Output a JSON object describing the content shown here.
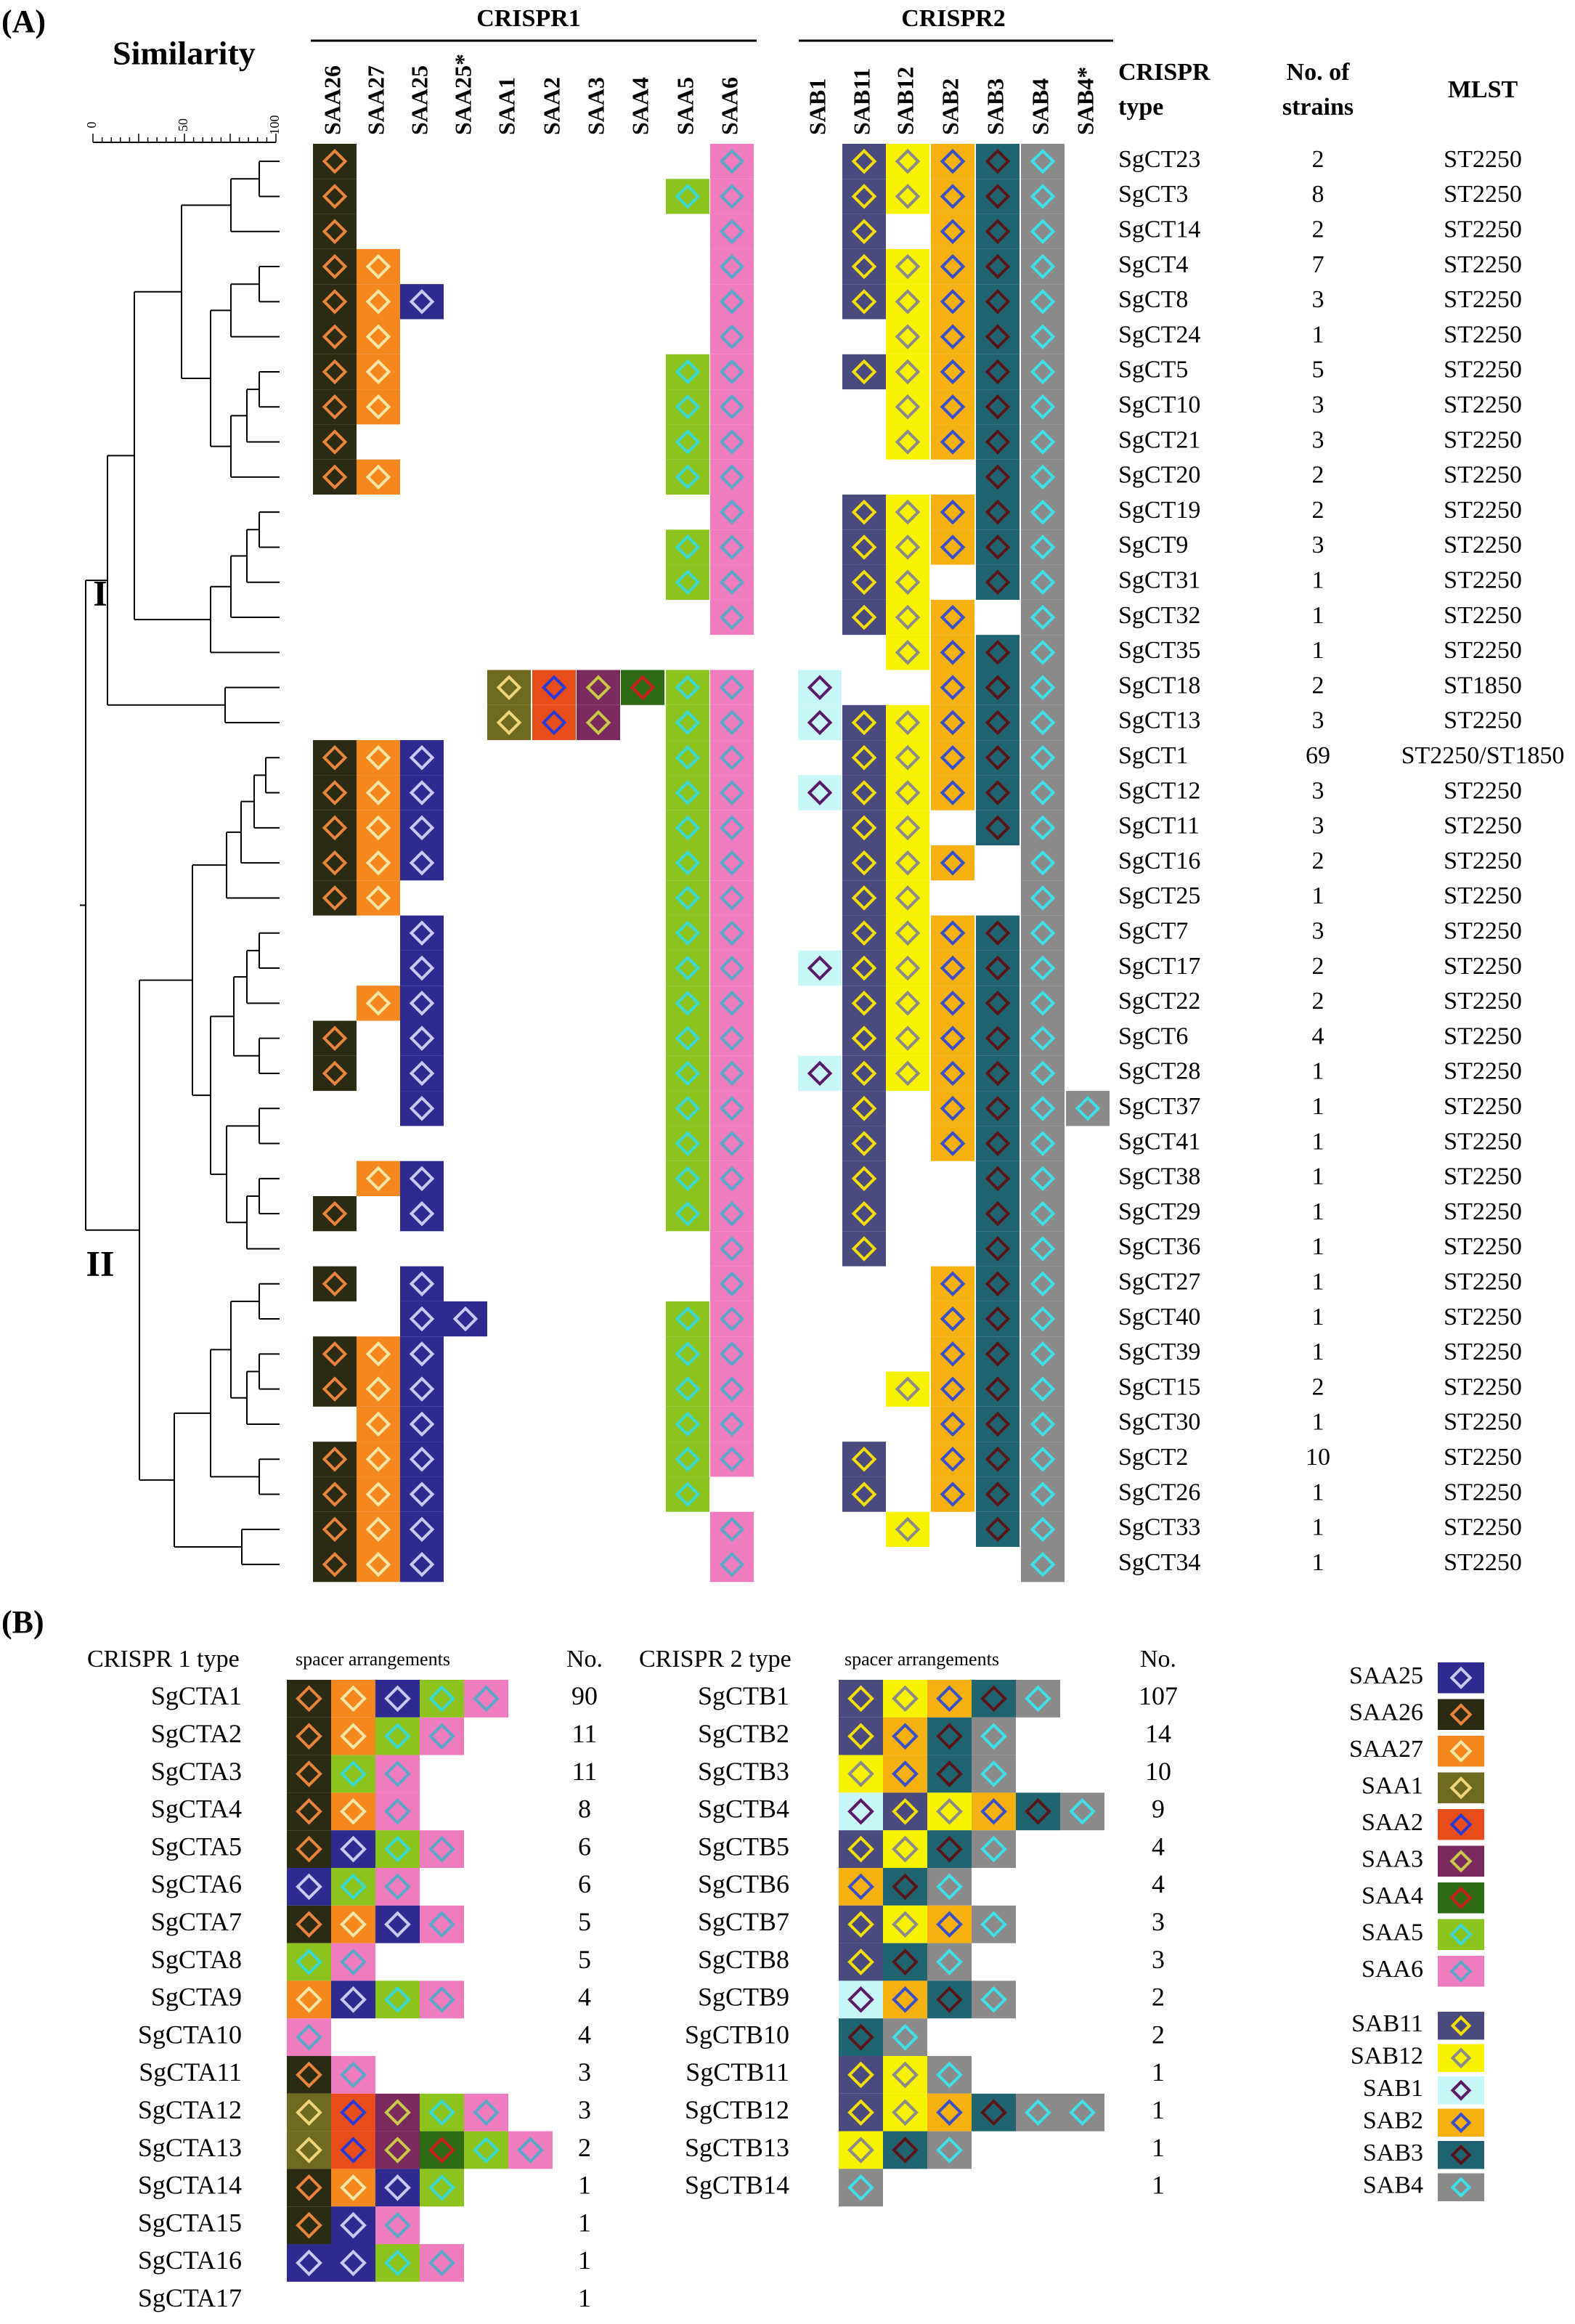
{
  "panel_a": {
    "label": "(A)",
    "similarity_title": "Similarity",
    "scale_ticks": [
      "0",
      "50",
      "100"
    ],
    "cluster_labels": [
      "I",
      "II"
    ],
    "group_titles": [
      "CRISPR1",
      "CRISPR2"
    ],
    "crispr1_columns": [
      "SAA26",
      "SAA27",
      "SAA25",
      "SAA25*",
      "SAA1",
      "SAA2",
      "SAA3",
      "SAA4",
      "SAA5",
      "SAA6"
    ],
    "crispr2_columns": [
      "SAB1",
      "SAB11",
      "SAB12",
      "SAB2",
      "SAB3",
      "SAB4",
      "SAB4*"
    ],
    "col_headers": {
      "type": "CRISPR type",
      "strains": "No. of strains",
      "mlst": "MLST"
    },
    "rows": [
      {
        "type": "SgCT23",
        "strains": "2",
        "mlst": "ST2250",
        "c1": [
          "SAA26",
          "SAA6"
        ],
        "c2": [
          "SAB11",
          "SAB12",
          "SAB2",
          "SAB3",
          "SAB4"
        ]
      },
      {
        "type": "SgCT3",
        "strains": "8",
        "mlst": "ST2250",
        "c1": [
          "SAA26",
          "SAA5",
          "SAA6"
        ],
        "c2": [
          "SAB11",
          "SAB12",
          "SAB2",
          "SAB3",
          "SAB4"
        ]
      },
      {
        "type": "SgCT14",
        "strains": "2",
        "mlst": "ST2250",
        "c1": [
          "SAA26",
          "SAA6"
        ],
        "c2": [
          "SAB11",
          "SAB2",
          "SAB3",
          "SAB4"
        ]
      },
      {
        "type": "SgCT4",
        "strains": "7",
        "mlst": "ST2250",
        "c1": [
          "SAA26",
          "SAA27",
          "SAA6"
        ],
        "c2": [
          "SAB11",
          "SAB12",
          "SAB2",
          "SAB3",
          "SAB4"
        ]
      },
      {
        "type": "SgCT8",
        "strains": "3",
        "mlst": "ST2250",
        "c1": [
          "SAA26",
          "SAA27",
          "SAA25",
          "SAA6"
        ],
        "c2": [
          "SAB11",
          "SAB12",
          "SAB2",
          "SAB3",
          "SAB4"
        ]
      },
      {
        "type": "SgCT24",
        "strains": "1",
        "mlst": "ST2250",
        "c1": [
          "SAA26",
          "SAA27",
          "SAA6"
        ],
        "c2": [
          "SAB12",
          "SAB2",
          "SAB3",
          "SAB4"
        ]
      },
      {
        "type": "SgCT5",
        "strains": "5",
        "mlst": "ST2250",
        "c1": [
          "SAA26",
          "SAA27",
          "SAA5",
          "SAA6"
        ],
        "c2": [
          "SAB11",
          "SAB12",
          "SAB2",
          "SAB3",
          "SAB4"
        ]
      },
      {
        "type": "SgCT10",
        "strains": "3",
        "mlst": "ST2250",
        "c1": [
          "SAA26",
          "SAA27",
          "SAA5",
          "SAA6"
        ],
        "c2": [
          "SAB12",
          "SAB2",
          "SAB3",
          "SAB4"
        ]
      },
      {
        "type": "SgCT21",
        "strains": "3",
        "mlst": "ST2250",
        "c1": [
          "SAA26",
          "SAA5",
          "SAA6"
        ],
        "c2": [
          "SAB12",
          "SAB2",
          "SAB3",
          "SAB4"
        ]
      },
      {
        "type": "SgCT20",
        "strains": "2",
        "mlst": "ST2250",
        "c1": [
          "SAA26",
          "SAA27",
          "SAA5",
          "SAA6"
        ],
        "c2": [
          "SAB3",
          "SAB4"
        ]
      },
      {
        "type": "SgCT19",
        "strains": "2",
        "mlst": "ST2250",
        "c1": [
          "SAA6"
        ],
        "c2": [
          "SAB11",
          "SAB12",
          "SAB2",
          "SAB3",
          "SAB4"
        ]
      },
      {
        "type": "SgCT9",
        "strains": "3",
        "mlst": "ST2250",
        "c1": [
          "SAA5",
          "SAA6"
        ],
        "c2": [
          "SAB11",
          "SAB12",
          "SAB2",
          "SAB3",
          "SAB4"
        ]
      },
      {
        "type": "SgCT31",
        "strains": "1",
        "mlst": "ST2250",
        "c1": [
          "SAA5",
          "SAA6"
        ],
        "c2": [
          "SAB11",
          "SAB12",
          "SAB3",
          "SAB4"
        ]
      },
      {
        "type": "SgCT32",
        "strains": "1",
        "mlst": "ST2250",
        "c1": [
          "SAA6"
        ],
        "c2": [
          "SAB11",
          "SAB12",
          "SAB2",
          "SAB4"
        ]
      },
      {
        "type": "SgCT35",
        "strains": "1",
        "mlst": "ST2250",
        "c1": [],
        "c2": [
          "SAB12",
          "SAB2",
          "SAB3",
          "SAB4"
        ]
      },
      {
        "type": "SgCT18",
        "strains": "2",
        "mlst": "ST1850",
        "c1": [
          "SAA1",
          "SAA2",
          "SAA3",
          "SAA4",
          "SAA5",
          "SAA6"
        ],
        "c2": [
          "SAB1",
          "SAB2",
          "SAB3",
          "SAB4"
        ]
      },
      {
        "type": "SgCT13",
        "strains": "3",
        "mlst": "ST2250",
        "c1": [
          "SAA1",
          "SAA2",
          "SAA3",
          "SAA5",
          "SAA6"
        ],
        "c2": [
          "SAB1",
          "SAB11",
          "SAB12",
          "SAB2",
          "SAB3",
          "SAB4"
        ]
      },
      {
        "type": "SgCT1",
        "strains": "69",
        "mlst": "ST2250/ST1850",
        "c1": [
          "SAA26",
          "SAA27",
          "SAA25",
          "SAA5",
          "SAA6"
        ],
        "c2": [
          "SAB11",
          "SAB12",
          "SAB2",
          "SAB3",
          "SAB4"
        ]
      },
      {
        "type": "SgCT12",
        "strains": "3",
        "mlst": "ST2250",
        "c1": [
          "SAA26",
          "SAA27",
          "SAA25",
          "SAA5",
          "SAA6"
        ],
        "c2": [
          "SAB1",
          "SAB11",
          "SAB12",
          "SAB2",
          "SAB3",
          "SAB4"
        ]
      },
      {
        "type": "SgCT11",
        "strains": "3",
        "mlst": "ST2250",
        "c1": [
          "SAA26",
          "SAA27",
          "SAA25",
          "SAA5",
          "SAA6"
        ],
        "c2": [
          "SAB11",
          "SAB12",
          "SAB3",
          "SAB4"
        ]
      },
      {
        "type": "SgCT16",
        "strains": "2",
        "mlst": "ST2250",
        "c1": [
          "SAA26",
          "SAA27",
          "SAA25",
          "SAA5",
          "SAA6"
        ],
        "c2": [
          "SAB11",
          "SAB12",
          "SAB2",
          "SAB4"
        ]
      },
      {
        "type": "SgCT25",
        "strains": "1",
        "mlst": "ST2250",
        "c1": [
          "SAA26",
          "SAA27",
          "SAA5",
          "SAA6"
        ],
        "c2": [
          "SAB11",
          "SAB12",
          "SAB4"
        ]
      },
      {
        "type": "SgCT7",
        "strains": "3",
        "mlst": "ST2250",
        "c1": [
          "SAA25",
          "SAA5",
          "SAA6"
        ],
        "c2": [
          "SAB11",
          "SAB12",
          "SAB2",
          "SAB3",
          "SAB4"
        ]
      },
      {
        "type": "SgCT17",
        "strains": "2",
        "mlst": "ST2250",
        "c1": [
          "SAA25",
          "SAA5",
          "SAA6"
        ],
        "c2": [
          "SAB1",
          "SAB11",
          "SAB12",
          "SAB2",
          "SAB3",
          "SAB4"
        ]
      },
      {
        "type": "SgCT22",
        "strains": "2",
        "mlst": "ST2250",
        "c1": [
          "SAA27",
          "SAA25",
          "SAA5",
          "SAA6"
        ],
        "c2": [
          "SAB11",
          "SAB12",
          "SAB2",
          "SAB3",
          "SAB4"
        ]
      },
      {
        "type": "SgCT6",
        "strains": "4",
        "mlst": "ST2250",
        "c1": [
          "SAA26",
          "SAA25",
          "SAA5",
          "SAA6"
        ],
        "c2": [
          "SAB11",
          "SAB12",
          "SAB2",
          "SAB3",
          "SAB4"
        ]
      },
      {
        "type": "SgCT28",
        "strains": "1",
        "mlst": "ST2250",
        "c1": [
          "SAA26",
          "SAA25",
          "SAA5",
          "SAA6"
        ],
        "c2": [
          "SAB1",
          "SAB11",
          "SAB12",
          "SAB2",
          "SAB3",
          "SAB4"
        ]
      },
      {
        "type": "SgCT37",
        "strains": "1",
        "mlst": "ST2250",
        "c1": [
          "SAA25",
          "SAA5",
          "SAA6"
        ],
        "c2": [
          "SAB11",
          "SAB2",
          "SAB3",
          "SAB4",
          "SAB4*"
        ]
      },
      {
        "type": "SgCT41",
        "strains": "1",
        "mlst": "ST2250",
        "c1": [
          "SAA5",
          "SAA6"
        ],
        "c2": [
          "SAB11",
          "SAB2",
          "SAB3",
          "SAB4"
        ]
      },
      {
        "type": "SgCT38",
        "strains": "1",
        "mlst": "ST2250",
        "c1": [
          "SAA27",
          "SAA25",
          "SAA5",
          "SAA6"
        ],
        "c2": [
          "SAB11",
          "SAB3",
          "SAB4"
        ]
      },
      {
        "type": "SgCT29",
        "strains": "1",
        "mlst": "ST2250",
        "c1": [
          "SAA26",
          "SAA25",
          "SAA5",
          "SAA6"
        ],
        "c2": [
          "SAB11",
          "SAB3",
          "SAB4"
        ]
      },
      {
        "type": "SgCT36",
        "strains": "1",
        "mlst": "ST2250",
        "c1": [
          "SAA6"
        ],
        "c2": [
          "SAB11",
          "SAB3",
          "SAB4"
        ]
      },
      {
        "type": "SgCT27",
        "strains": "1",
        "mlst": "ST2250",
        "c1": [
          "SAA26",
          "SAA25",
          "SAA6"
        ],
        "c2": [
          "SAB2",
          "SAB3",
          "SAB4"
        ]
      },
      {
        "type": "SgCT40",
        "strains": "1",
        "mlst": "ST2250",
        "c1": [
          "SAA25",
          "SAA25*",
          "SAA5",
          "SAA6"
        ],
        "c2": [
          "SAB2",
          "SAB3",
          "SAB4"
        ]
      },
      {
        "type": "SgCT39",
        "strains": "1",
        "mlst": "ST2250",
        "c1": [
          "SAA26",
          "SAA27",
          "SAA25",
          "SAA5",
          "SAA6"
        ],
        "c2": [
          "SAB2",
          "SAB3",
          "SAB4"
        ]
      },
      {
        "type": "SgCT15",
        "strains": "2",
        "mlst": "ST2250",
        "c1": [
          "SAA26",
          "SAA27",
          "SAA25",
          "SAA5",
          "SAA6"
        ],
        "c2": [
          "SAB12",
          "SAB2",
          "SAB3",
          "SAB4"
        ]
      },
      {
        "type": "SgCT30",
        "strains": "1",
        "mlst": "ST2250",
        "c1": [
          "SAA27",
          "SAA25",
          "SAA5",
          "SAA6"
        ],
        "c2": [
          "SAB2",
          "SAB3",
          "SAB4"
        ]
      },
      {
        "type": "SgCT2",
        "strains": "10",
        "mlst": "ST2250",
        "c1": [
          "SAA26",
          "SAA27",
          "SAA25",
          "SAA5",
          "SAA6"
        ],
        "c2": [
          "SAB11",
          "SAB2",
          "SAB3",
          "SAB4"
        ]
      },
      {
        "type": "SgCT26",
        "strains": "1",
        "mlst": "ST2250",
        "c1": [
          "SAA26",
          "SAA27",
          "SAA25",
          "SAA5"
        ],
        "c2": [
          "SAB11",
          "SAB2",
          "SAB3",
          "SAB4"
        ]
      },
      {
        "type": "SgCT33",
        "strains": "1",
        "mlst": "ST2250",
        "c1": [
          "SAA26",
          "SAA27",
          "SAA25",
          "SAA6"
        ],
        "c2": [
          "SAB12",
          "SAB3",
          "SAB4"
        ]
      },
      {
        "type": "SgCT34",
        "strains": "1",
        "mlst": "ST2250",
        "c1": [
          "SAA26",
          "SAA27",
          "SAA25",
          "SAA6"
        ],
        "c2": [
          "SAB4"
        ]
      }
    ]
  },
  "panel_b": {
    "label": "(B)",
    "crispr1_header": "CRISPR 1 type",
    "crispr2_header": "CRISPR 2 type",
    "spacer_header": "spacer arrangements",
    "no_header": "No.",
    "crispr1_types": [
      {
        "name": "SgCTA1",
        "no": "90",
        "spacers": [
          "SAA26",
          "SAA27",
          "SAA25",
          "SAA5",
          "SAA6"
        ]
      },
      {
        "name": "SgCTA2",
        "no": "11",
        "spacers": [
          "SAA26",
          "SAA27",
          "SAA5",
          "SAA6"
        ]
      },
      {
        "name": "SgCTA3",
        "no": "11",
        "spacers": [
          "SAA26",
          "SAA5",
          "SAA6"
        ]
      },
      {
        "name": "SgCTA4",
        "no": "8",
        "spacers": [
          "SAA26",
          "SAA27",
          "SAA6"
        ]
      },
      {
        "name": "SgCTA5",
        "no": "6",
        "spacers": [
          "SAA26",
          "SAA25",
          "SAA5",
          "SAA6"
        ]
      },
      {
        "name": "SgCTA6",
        "no": "6",
        "spacers": [
          "SAA25",
          "SAA5",
          "SAA6"
        ]
      },
      {
        "name": "SgCTA7",
        "no": "5",
        "spacers": [
          "SAA26",
          "SAA27",
          "SAA25",
          "SAA6"
        ]
      },
      {
        "name": "SgCTA8",
        "no": "5",
        "spacers": [
          "SAA5",
          "SAA6"
        ]
      },
      {
        "name": "SgCTA9",
        "no": "4",
        "spacers": [
          "SAA27",
          "SAA25",
          "SAA5",
          "SAA6"
        ]
      },
      {
        "name": "SgCTA10",
        "no": "4",
        "spacers": [
          "SAA6"
        ]
      },
      {
        "name": "SgCTA11",
        "no": "3",
        "spacers": [
          "SAA26",
          "SAA6"
        ]
      },
      {
        "name": "SgCTA12",
        "no": "3",
        "spacers": [
          "SAA1",
          "SAA2",
          "SAA3",
          "SAA5",
          "SAA6"
        ]
      },
      {
        "name": "SgCTA13",
        "no": "2",
        "spacers": [
          "SAA1",
          "SAA2",
          "SAA3",
          "SAA4",
          "SAA5",
          "SAA6"
        ]
      },
      {
        "name": "SgCTA14",
        "no": "1",
        "spacers": [
          "SAA26",
          "SAA27",
          "SAA25",
          "SAA5"
        ]
      },
      {
        "name": "SgCTA15",
        "no": "1",
        "spacers": [
          "SAA26",
          "SAA25",
          "SAA6"
        ]
      },
      {
        "name": "SgCTA16",
        "no": "1",
        "spacers": [
          "SAA25",
          "SAA25",
          "SAA5",
          "SAA6"
        ]
      },
      {
        "name": "SgCTA17",
        "no": "1",
        "spacers": []
      }
    ],
    "crispr2_types": [
      {
        "name": "SgCTB1",
        "no": "107",
        "spacers": [
          "SAB11",
          "SAB12",
          "SAB2",
          "SAB3",
          "SAB4"
        ]
      },
      {
        "name": "SgCTB2",
        "no": "14",
        "spacers": [
          "SAB11",
          "SAB2",
          "SAB3",
          "SAB4"
        ]
      },
      {
        "name": "SgCTB3",
        "no": "10",
        "spacers": [
          "SAB12",
          "SAB2",
          "SAB3",
          "SAB4"
        ]
      },
      {
        "name": "SgCTB4",
        "no": "9",
        "spacers": [
          "SAB1",
          "SAB11",
          "SAB12",
          "SAB2",
          "SAB3",
          "SAB4"
        ]
      },
      {
        "name": "SgCTB5",
        "no": "4",
        "spacers": [
          "SAB11",
          "SAB12",
          "SAB3",
          "SAB4"
        ]
      },
      {
        "name": "SgCTB6",
        "no": "4",
        "spacers": [
          "SAB2",
          "SAB3",
          "SAB4"
        ]
      },
      {
        "name": "SgCTB7",
        "no": "3",
        "spacers": [
          "SAB11",
          "SAB12",
          "SAB2",
          "SAB4"
        ]
      },
      {
        "name": "SgCTB8",
        "no": "3",
        "spacers": [
          "SAB11",
          "SAB3",
          "SAB4"
        ]
      },
      {
        "name": "SgCTB9",
        "no": "2",
        "spacers": [
          "SAB1",
          "SAB2",
          "SAB3",
          "SAB4"
        ]
      },
      {
        "name": "SgCTB10",
        "no": "2",
        "spacers": [
          "SAB3",
          "SAB4"
        ]
      },
      {
        "name": "SgCTB11",
        "no": "1",
        "spacers": [
          "SAB11",
          "SAB12",
          "SAB4"
        ]
      },
      {
        "name": "SgCTB12",
        "no": "1",
        "spacers": [
          "SAB11",
          "SAB12",
          "SAB2",
          "SAB3",
          "SAB4",
          "SAB4"
        ]
      },
      {
        "name": "SgCTB13",
        "no": "1",
        "spacers": [
          "SAB12",
          "SAB3",
          "SAB4"
        ]
      },
      {
        "name": "SgCTB14",
        "no": "1",
        "spacers": [
          "SAB4"
        ]
      }
    ],
    "legend_crispr1": [
      "SAA25",
      "SAA26",
      "SAA27",
      "SAA1",
      "SAA2",
      "SAA3",
      "SAA4",
      "SAA5",
      "SAA6"
    ],
    "legend_crispr2": [
      "SAB11",
      "SAB12",
      "SAB1",
      "SAB2",
      "SAB3",
      "SAB4"
    ]
  },
  "spacer_colors": {
    "SAA26": {
      "fill": "#2b2a12",
      "diamond": "#e8843c"
    },
    "SAA27": {
      "fill": "#f5871f",
      "diamond": "#f2e6a6"
    },
    "SAA25": {
      "fill": "#2e2a8f",
      "diamond": "#c9c9f0"
    },
    "SAA25*": {
      "fill": "#2e2a8f",
      "diamond": "#c9c9f0"
    },
    "SAA1": {
      "fill": "#6e6a1f",
      "diamond": "#f0d47a"
    },
    "SAA2": {
      "fill": "#e84e1b",
      "diamond": "#2a3ad6"
    },
    "SAA3": {
      "fill": "#7a2a5c",
      "diamond": "#c8c84a"
    },
    "SAA4": {
      "fill": "#2e6b14",
      "diamond": "#c8201e"
    },
    "SAA5": {
      "fill": "#8cc31e",
      "diamond": "#3ad8d0"
    },
    "SAA6": {
      "fill": "#f07cc0",
      "diamond": "#5aa7c8"
    },
    "SAB1": {
      "fill": "#c8f5f5",
      "diamond": "#5a1a6a"
    },
    "SAB11": {
      "fill": "#4b4a7e",
      "diamond": "#f3e000"
    },
    "SAB12": {
      "fill": "#f7f200",
      "diamond": "#8a8a8a"
    },
    "SAB2": {
      "fill": "#f5b012",
      "diamond": "#3a50c8"
    },
    "SAB3": {
      "fill": "#1f6470",
      "diamond": "#5a1418"
    },
    "SAB4": {
      "fill": "#8a8a8a",
      "diamond": "#40e0e8"
    },
    "SAB4*": {
      "fill": "#8a8a8a",
      "diamond": "#40e0e8"
    }
  }
}
